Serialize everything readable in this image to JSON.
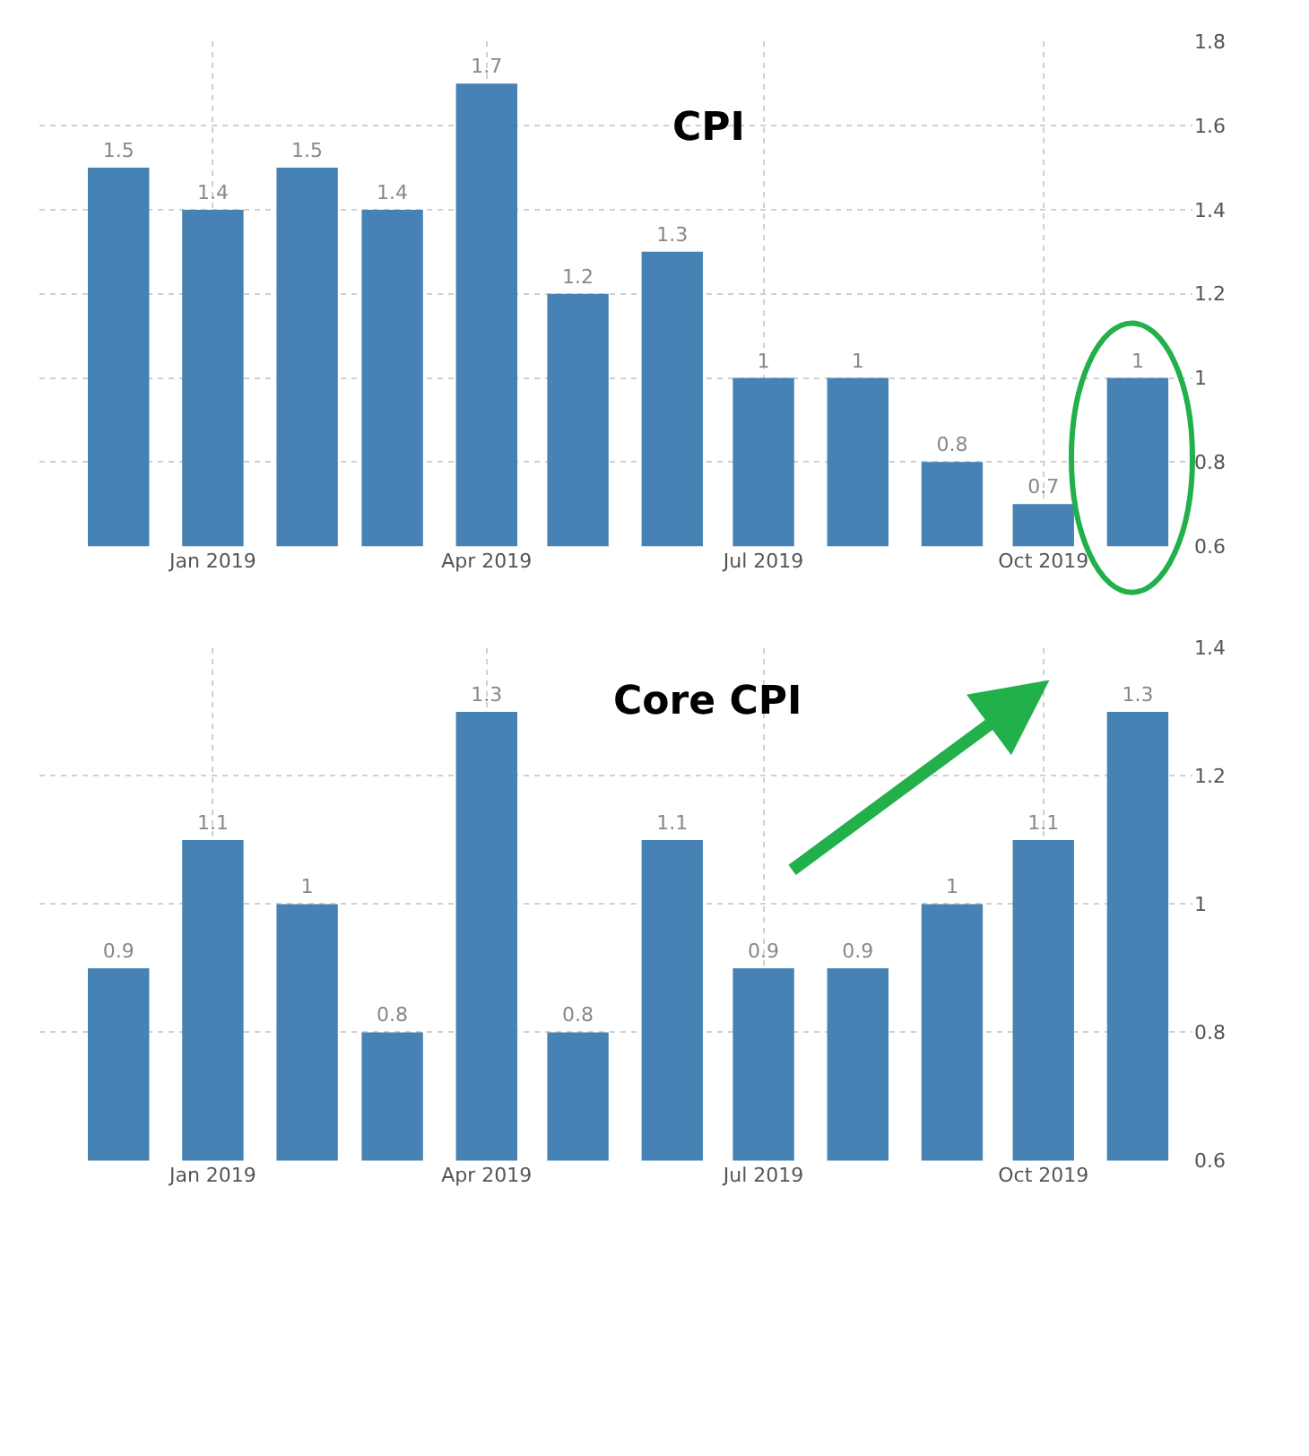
{
  "chart_data": [
    {
      "type": "bar",
      "title": "CPI",
      "x": [
        "2018-12",
        "2019-01",
        "2019-02",
        "2019-03",
        "2019-04",
        "2019-05",
        "2019-06",
        "2019-07",
        "2019-08",
        "2019-09",
        "2019-10",
        "2019-11"
      ],
      "series": [
        {
          "color": "#4682b4",
          "values": [
            1.5,
            1.4,
            1.5,
            1.4,
            1.7,
            1.2,
            1.3,
            1,
            1,
            0.8,
            0.7,
            1
          ]
        }
      ],
      "data_labels": true,
      "xlim": [
        "2018-11-05",
        "2019-11-19"
      ],
      "xticks": [
        {
          "value": "2019-01",
          "label": "Jan 2019"
        },
        {
          "value": "2019-04",
          "label": "Apr 2019"
        },
        {
          "value": "2019-07",
          "label": "Jul 2019"
        },
        {
          "value": "2019-10",
          "label": "Oct 2019"
        }
      ],
      "ylim": [
        0.6,
        1.8
      ],
      "yticks": [
        0.6,
        0.8,
        1,
        1.2,
        1.4,
        1.6,
        1.8
      ],
      "grid": true
    },
    {
      "type": "bar",
      "title": "Core CPI",
      "x": [
        "2018-12",
        "2019-01",
        "2019-02",
        "2019-03",
        "2019-04",
        "2019-05",
        "2019-06",
        "2019-07",
        "2019-08",
        "2019-09",
        "2019-10",
        "2019-11"
      ],
      "series": [
        {
          "color": "#4682b4",
          "values": [
            0.9,
            1.1,
            1,
            0.8,
            1.3,
            0.8,
            1.1,
            0.9,
            0.9,
            1,
            1.1,
            1.3
          ]
        }
      ],
      "data_labels": true,
      "xlim": [
        "2018-11-05",
        "2019-11-19"
      ],
      "xticks": [
        {
          "value": "2019-01",
          "label": "Jan 2019"
        },
        {
          "value": "2019-04",
          "label": "Apr 2019"
        },
        {
          "value": "2019-07",
          "label": "Jul 2019"
        },
        {
          "value": "2019-10",
          "label": "Oct 2019"
        }
      ],
      "ylim": [
        0.6,
        1.4
      ],
      "yticks": [
        0.6,
        0.8,
        1,
        1.2,
        1.4
      ],
      "grid": true
    }
  ]
}
